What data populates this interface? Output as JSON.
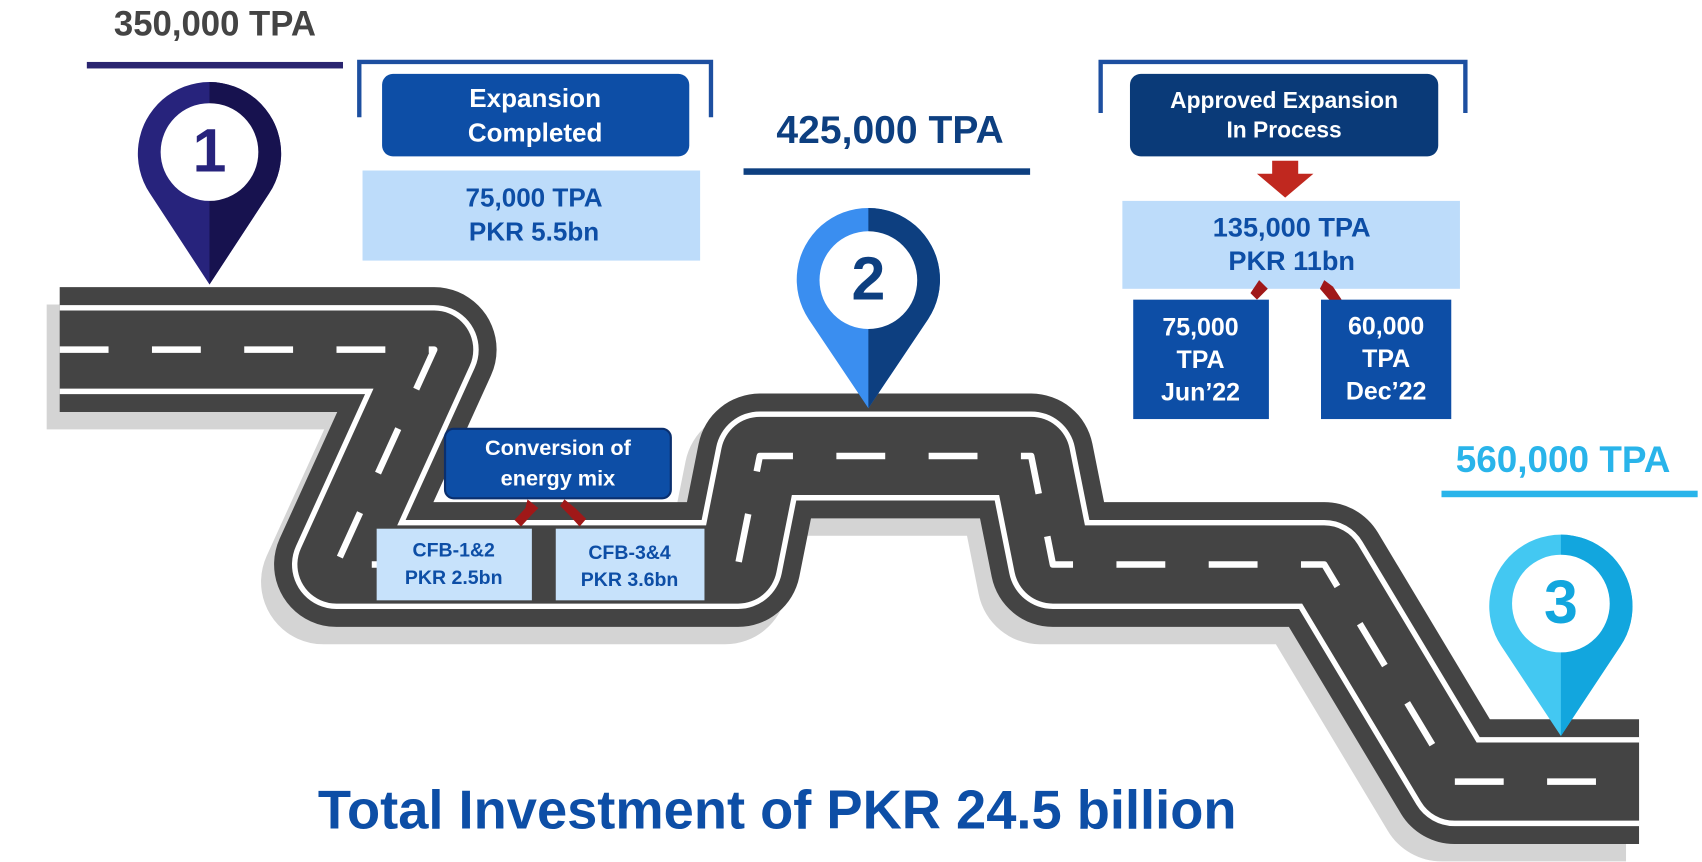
{
  "stages": [
    {
      "number": "1",
      "capacity": "350,000 TPA"
    },
    {
      "number": "2",
      "capacity": "425,000 TPA"
    },
    {
      "number": "3",
      "capacity": "560,000 TPA"
    }
  ],
  "expansion_completed": {
    "label": [
      "Expansion",
      "Completed"
    ],
    "detail": [
      "75,000 TPA",
      "PKR 5.5bn"
    ]
  },
  "energy_mix": {
    "label": [
      "Conversion of",
      "energy mix"
    ],
    "items": [
      [
        "CFB-1&2",
        "PKR 2.5bn"
      ],
      [
        "CFB-3&4",
        "PKR 3.6bn"
      ]
    ]
  },
  "approved_expansion": {
    "label": [
      "Approved Expansion",
      "In Process"
    ],
    "detail": [
      "135,000 TPA",
      "PKR 11bn"
    ],
    "phases": [
      [
        "75,000",
        "TPA",
        "Jun’22"
      ],
      [
        "60,000",
        "TPA",
        "Dec’22"
      ]
    ]
  },
  "footer": "Total Investment of PKR 24.5 billion"
}
